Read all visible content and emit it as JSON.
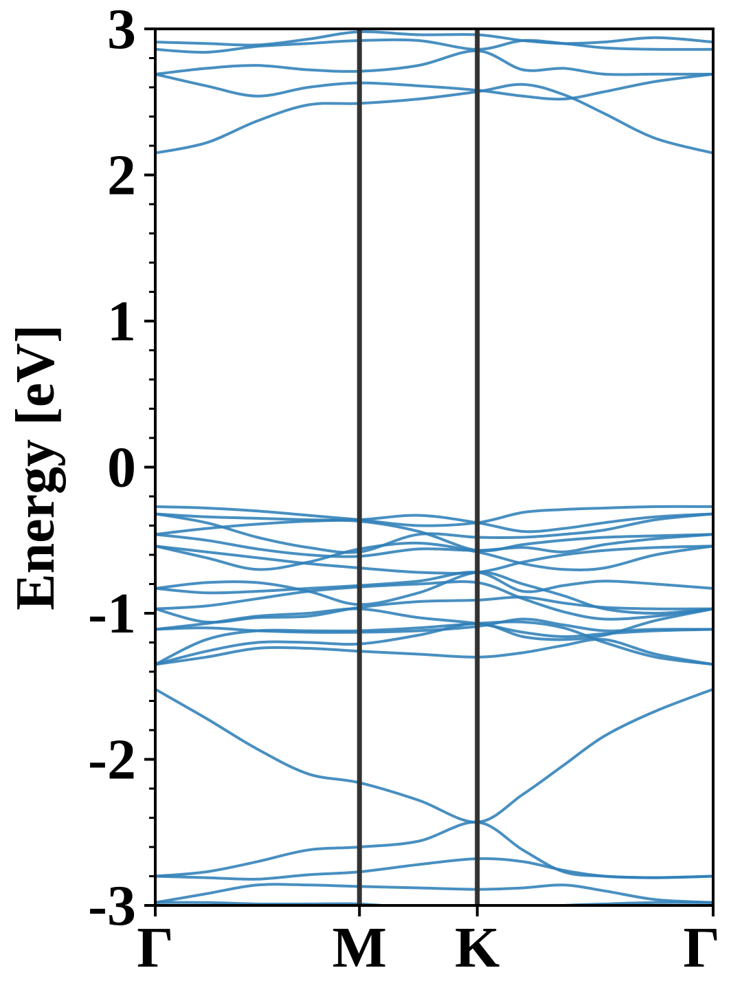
{
  "chart_data": {
    "type": "line",
    "title": "",
    "xlabel": "",
    "ylabel": "Energy [eV]",
    "ylim": [
      -3,
      3
    ],
    "xlim": [
      0,
      2.732
    ],
    "y_ticks": [
      -3,
      -2,
      -1,
      0,
      1,
      2,
      3
    ],
    "y_tick_labels": [
      "-3",
      "-2",
      "-1",
      "0",
      "1",
      "2",
      "3"
    ],
    "y_minor_step": 0.2,
    "high_symmetry_points": [
      {
        "label": "Γ",
        "x": 0
      },
      {
        "label": "M",
        "x": 1.0
      },
      {
        "label": "K",
        "x": 1.577
      },
      {
        "label": "Γ",
        "x": 2.732
      }
    ],
    "vertical_lines_at": [
      1.0,
      1.577
    ],
    "grid": false,
    "legend": "none",
    "colors": {
      "bands": "#2f7fb8",
      "kpath_lines": "#333333",
      "axes": "#000000"
    },
    "series": [
      {
        "x": [
          0,
          0.25,
          0.5,
          0.75,
          1.0,
          1.29,
          1.577,
          1.8,
          2.0,
          2.2,
          2.45,
          2.732
        ],
        "y": [
          2.15,
          2.22,
          2.37,
          2.48,
          2.49,
          2.52,
          2.57,
          2.62,
          2.55,
          2.42,
          2.25,
          2.15
        ]
      },
      {
        "x": [
          0,
          0.25,
          0.5,
          0.75,
          1.0,
          1.29,
          1.577,
          1.8,
          2.0,
          2.2,
          2.45,
          2.732
        ],
        "y": [
          2.69,
          2.61,
          2.54,
          2.6,
          2.63,
          2.61,
          2.58,
          2.54,
          2.52,
          2.57,
          2.64,
          2.69
        ]
      },
      {
        "x": [
          0,
          0.25,
          0.5,
          0.75,
          1.0,
          1.29,
          1.577,
          1.8,
          2.0,
          2.2,
          2.45,
          2.732
        ],
        "y": [
          2.69,
          2.73,
          2.75,
          2.72,
          2.71,
          2.75,
          2.85,
          2.72,
          2.73,
          2.69,
          2.69,
          2.69
        ]
      },
      {
        "x": [
          0,
          0.25,
          0.5,
          0.75,
          1.0,
          1.29,
          1.577,
          1.8,
          2.0,
          2.2,
          2.45,
          2.732
        ],
        "y": [
          2.86,
          2.84,
          2.88,
          2.9,
          2.92,
          2.92,
          2.86,
          2.92,
          2.9,
          2.87,
          2.86,
          2.86
        ]
      },
      {
        "x": [
          0,
          0.25,
          0.5,
          0.75,
          1.0,
          1.29,
          1.577,
          1.8,
          2.0,
          2.2,
          2.45,
          2.732
        ],
        "y": [
          2.91,
          2.9,
          2.89,
          2.93,
          2.98,
          2.96,
          2.96,
          2.92,
          2.9,
          2.91,
          2.94,
          2.91
        ]
      },
      {
        "x": [
          0,
          0.25,
          0.5,
          0.75,
          1.0,
          1.29,
          1.577,
          1.8,
          2.0,
          2.2,
          2.45,
          2.732
        ],
        "y": [
          -0.27,
          -0.28,
          -0.3,
          -0.33,
          -0.36,
          -0.4,
          -0.38,
          -0.31,
          -0.29,
          -0.28,
          -0.27,
          -0.27
        ]
      },
      {
        "x": [
          0,
          0.25,
          0.5,
          0.75,
          1.0,
          1.29,
          1.577,
          1.8,
          2.0,
          2.2,
          2.45,
          2.732
        ],
        "y": [
          -0.32,
          -0.34,
          -0.35,
          -0.36,
          -0.36,
          -0.33,
          -0.38,
          -0.44,
          -0.42,
          -0.38,
          -0.34,
          -0.32
        ]
      },
      {
        "x": [
          0,
          0.25,
          0.5,
          0.75,
          1.0,
          1.29,
          1.577,
          1.8,
          2.0,
          2.2,
          2.45,
          2.732
        ],
        "y": [
          -0.32,
          -0.38,
          -0.48,
          -0.55,
          -0.58,
          -0.46,
          -0.48,
          -0.48,
          -0.46,
          -0.43,
          -0.36,
          -0.32
        ]
      },
      {
        "x": [
          0,
          0.25,
          0.5,
          0.75,
          1.0,
          1.29,
          1.577,
          1.8,
          2.0,
          2.2,
          2.45,
          2.732
        ],
        "y": [
          -0.46,
          -0.42,
          -0.39,
          -0.37,
          -0.37,
          -0.44,
          -0.57,
          -0.53,
          -0.5,
          -0.48,
          -0.47,
          -0.46
        ]
      },
      {
        "x": [
          0,
          0.25,
          0.5,
          0.75,
          1.0,
          1.29,
          1.577,
          1.8,
          2.0,
          2.2,
          2.45,
          2.732
        ],
        "y": [
          -0.46,
          -0.5,
          -0.56,
          -0.6,
          -0.61,
          -0.56,
          -0.57,
          -0.55,
          -0.58,
          -0.53,
          -0.49,
          -0.46
        ]
      },
      {
        "x": [
          0,
          0.25,
          0.5,
          0.75,
          1.0,
          1.29,
          1.577,
          1.8,
          2.0,
          2.2,
          2.45,
          2.732
        ],
        "y": [
          -0.54,
          -0.62,
          -0.7,
          -0.65,
          -0.56,
          -0.52,
          -0.58,
          -0.66,
          -0.7,
          -0.69,
          -0.6,
          -0.54
        ]
      },
      {
        "x": [
          0,
          0.25,
          0.5,
          0.75,
          1.0,
          1.29,
          1.577,
          1.8,
          2.0,
          2.2,
          2.45,
          2.732
        ],
        "y": [
          -0.54,
          -0.58,
          -0.62,
          -0.66,
          -0.69,
          -0.72,
          -0.72,
          -0.65,
          -0.6,
          -0.57,
          -0.55,
          -0.54
        ]
      },
      {
        "x": [
          0,
          0.25,
          0.5,
          0.75,
          1.0,
          1.29,
          1.577,
          1.8,
          2.0,
          2.2,
          2.45,
          2.732
        ],
        "y": [
          -0.83,
          -0.79,
          -0.79,
          -0.85,
          -0.94,
          -0.86,
          -0.72,
          -0.8,
          -0.88,
          -0.97,
          -1.0,
          -0.97
        ]
      },
      {
        "x": [
          0,
          0.25,
          0.5,
          0.75,
          1.0,
          1.29,
          1.577,
          1.8,
          2.0,
          2.2,
          2.45,
          2.732
        ],
        "y": [
          -0.83,
          -0.86,
          -0.85,
          -0.83,
          -0.81,
          -0.78,
          -0.72,
          -0.85,
          -0.81,
          -0.78,
          -0.8,
          -0.83
        ]
      },
      {
        "x": [
          0,
          0.25,
          0.5,
          0.75,
          1.0,
          1.29,
          1.577,
          1.8,
          2.0,
          2.2,
          2.45,
          2.732
        ],
        "y": [
          -0.97,
          -0.95,
          -0.9,
          -0.85,
          -0.82,
          -0.8,
          -0.79,
          -0.9,
          -0.99,
          -1.04,
          -1.02,
          -0.97
        ]
      },
      {
        "x": [
          0,
          0.25,
          0.5,
          0.75,
          1.0,
          1.29,
          1.577,
          1.8,
          2.0,
          2.2,
          2.45,
          2.732
        ],
        "y": [
          -0.97,
          -1.06,
          -1.03,
          -1.02,
          -0.96,
          -0.92,
          -0.91,
          -0.89,
          -0.93,
          -0.96,
          -0.97,
          -0.97
        ]
      },
      {
        "x": [
          0,
          0.25,
          0.5,
          0.75,
          1.0,
          1.29,
          1.577,
          1.8,
          2.0,
          2.2,
          2.45,
          2.732
        ],
        "y": [
          -1.11,
          -1.07,
          -1.02,
          -1.0,
          -0.97,
          -1.03,
          -1.07,
          -1.13,
          -1.16,
          -1.14,
          -1.12,
          -1.11
        ]
      },
      {
        "x": [
          0,
          0.25,
          0.5,
          0.75,
          1.0,
          1.29,
          1.577,
          1.8,
          2.0,
          2.2,
          2.45,
          2.732
        ],
        "y": [
          -1.11,
          -1.1,
          -1.12,
          -1.13,
          -1.13,
          -1.12,
          -1.09,
          -1.04,
          -1.08,
          -1.12,
          -1.11,
          -1.11
        ]
      },
      {
        "x": [
          0,
          0.25,
          0.5,
          0.75,
          1.0,
          1.29,
          1.577,
          1.8,
          2.0,
          2.2,
          2.45,
          2.732
        ],
        "y": [
          -1.35,
          -1.26,
          -1.2,
          -1.2,
          -1.21,
          -1.15,
          -1.07,
          -1.16,
          -1.18,
          -1.15,
          -1.05,
          -0.97
        ]
      },
      {
        "x": [
          0,
          0.25,
          0.5,
          0.75,
          1.0,
          1.29,
          1.577,
          1.8,
          2.0,
          2.2,
          2.45,
          2.732
        ],
        "y": [
          -1.35,
          -1.18,
          -1.12,
          -1.12,
          -1.12,
          -1.1,
          -1.07,
          -1.06,
          -1.1,
          -1.2,
          -1.3,
          -1.35
        ]
      },
      {
        "x": [
          0,
          0.25,
          0.5,
          0.75,
          1.0,
          1.29,
          1.577,
          1.8,
          2.0,
          2.2,
          2.45,
          2.732
        ],
        "y": [
          -1.35,
          -1.3,
          -1.24,
          -1.24,
          -1.26,
          -1.28,
          -1.3,
          -1.27,
          -1.22,
          -1.18,
          -1.28,
          -1.35
        ]
      },
      {
        "x": [
          0,
          0.25,
          0.5,
          0.75,
          1.0,
          1.29,
          1.577,
          1.8,
          2.0,
          2.2,
          2.45,
          2.732
        ],
        "y": [
          -1.52,
          -1.72,
          -1.93,
          -2.1,
          -2.16,
          -2.28,
          -2.43,
          -2.24,
          -2.04,
          -1.84,
          -1.67,
          -1.52
        ]
      },
      {
        "x": [
          0,
          0.25,
          0.5,
          0.75,
          1.0,
          1.29,
          1.577,
          1.8,
          2.0,
          2.2,
          2.45,
          2.732
        ],
        "y": [
          -2.8,
          -2.77,
          -2.7,
          -2.62,
          -2.6,
          -2.56,
          -2.43,
          -2.62,
          -2.77,
          -2.8,
          -2.81,
          -2.8
        ]
      },
      {
        "x": [
          0,
          0.25,
          0.5,
          0.75,
          1.0,
          1.29,
          1.577,
          1.8,
          2.0,
          2.2,
          2.45,
          2.732
        ],
        "y": [
          -2.8,
          -2.81,
          -2.82,
          -2.79,
          -2.77,
          -2.72,
          -2.68,
          -2.7,
          -2.76,
          -2.8,
          -2.81,
          -2.8
        ]
      },
      {
        "x": [
          0,
          0.25,
          0.5,
          0.75,
          1.0,
          1.29,
          1.577,
          1.8,
          2.0,
          2.2,
          2.45,
          2.732
        ],
        "y": [
          -2.98,
          -2.92,
          -2.86,
          -2.86,
          -2.87,
          -2.88,
          -2.89,
          -2.88,
          -2.86,
          -2.9,
          -2.96,
          -2.98
        ]
      },
      {
        "x": [
          0,
          0.25,
          0.5,
          0.75,
          1.0,
          1.29,
          1.577,
          1.8,
          2.0,
          2.2,
          2.45,
          2.732
        ],
        "y": [
          -2.98,
          -2.98,
          -2.99,
          -2.99,
          -2.99,
          -3.02,
          -3.03,
          -3.02,
          -3.0,
          -2.99,
          -2.98,
          -2.98
        ]
      }
    ]
  }
}
